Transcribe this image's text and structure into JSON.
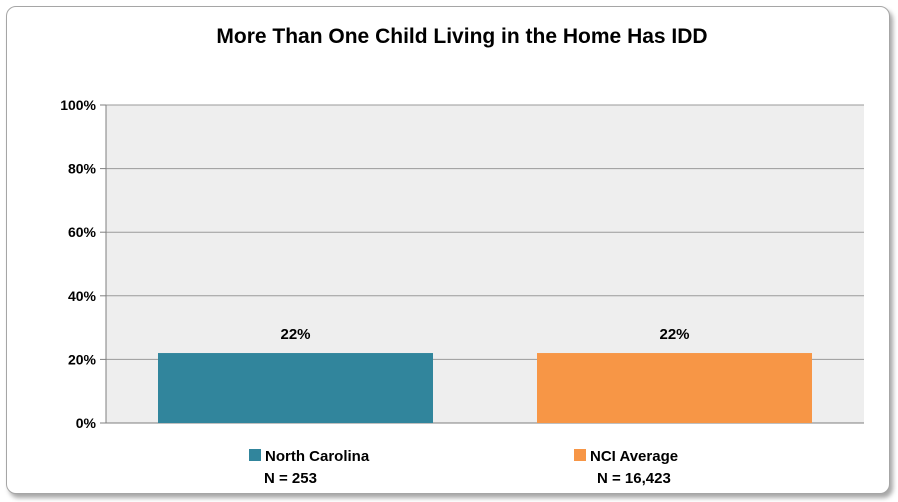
{
  "chart_data": {
    "type": "bar",
    "title": "More Than One Child Living in the Home Has IDD",
    "xlabel": "",
    "ylabel": "",
    "ylim": [
      0,
      100
    ],
    "y_ticks": [
      "0%",
      "20%",
      "40%",
      "60%",
      "80%",
      "100%"
    ],
    "y_tick_values": [
      0,
      20,
      40,
      60,
      80,
      100
    ],
    "grid": true,
    "legend_position": "bottom",
    "series": [
      {
        "name": "North Carolina",
        "n_label": "N = 253",
        "value": 22,
        "value_label": "22%",
        "color": "#31859c"
      },
      {
        "name": "NCI Average",
        "n_label": "N = 16,423",
        "value": 22,
        "value_label": "22%",
        "color": "#f79646"
      }
    ],
    "plot_background": "#eeeeee"
  }
}
